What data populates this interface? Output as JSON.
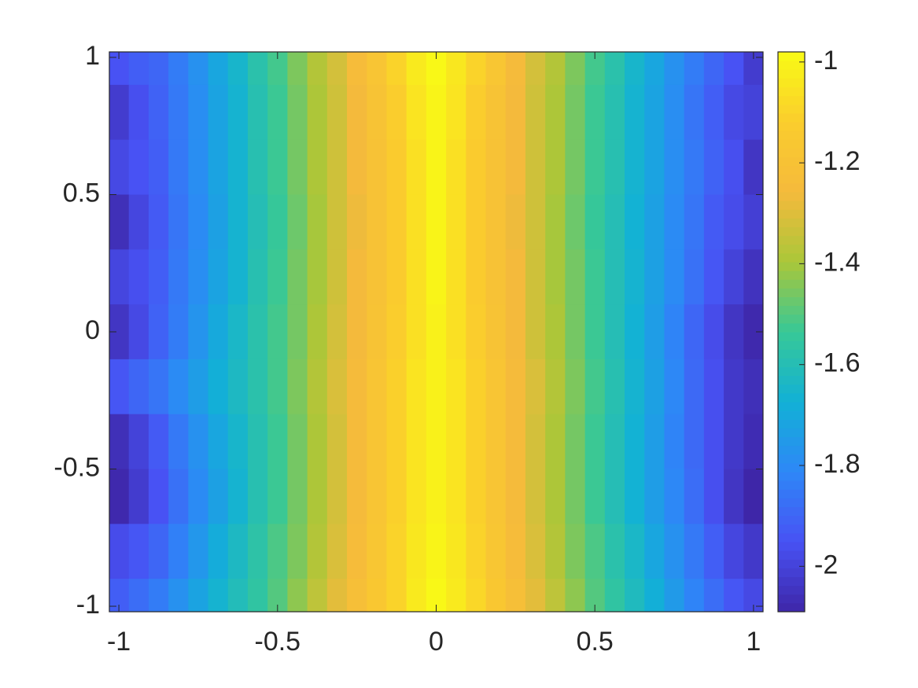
{
  "chart_data": {
    "type": "heatmap",
    "colormap": "parula",
    "x": [
      -1,
      -0.9375,
      -0.875,
      -0.8125,
      -0.75,
      -0.6875,
      -0.625,
      -0.5625,
      -0.5,
      -0.4375,
      -0.375,
      -0.3125,
      -0.25,
      -0.1875,
      -0.125,
      -0.0625,
      0,
      0.0625,
      0.125,
      0.1875,
      0.25,
      0.3125,
      0.375,
      0.4375,
      0.5,
      0.5625,
      0.625,
      0.6875,
      0.75,
      0.8125,
      0.875,
      0.9375,
      1
    ],
    "y": [
      1,
      0.8,
      0.6,
      0.4,
      0.2,
      0,
      -0.2,
      -0.4,
      -0.6,
      -0.8,
      -1
    ],
    "values": [
      [
        -1.95,
        -1.92,
        -1.9,
        -1.84,
        -1.78,
        -1.71,
        -1.65,
        -1.58,
        -1.52,
        -1.45,
        -1.38,
        -1.32,
        -1.24,
        -1.18,
        -1.1,
        -1.03,
        -0.99,
        -1.04,
        -1.1,
        -1.17,
        -1.25,
        -1.32,
        -1.38,
        -1.45,
        -1.52,
        -1.58,
        -1.65,
        -1.71,
        -1.78,
        -1.84,
        -1.9,
        -1.95,
        -2.02
      ],
      [
        -2.02,
        -1.96,
        -1.91,
        -1.85,
        -1.79,
        -1.72,
        -1.66,
        -1.59,
        -1.53,
        -1.46,
        -1.39,
        -1.33,
        -1.26,
        -1.19,
        -1.12,
        -1.05,
        -1.0,
        -1.05,
        -1.12,
        -1.19,
        -1.26,
        -1.33,
        -1.39,
        -1.46,
        -1.53,
        -1.59,
        -1.66,
        -1.72,
        -1.79,
        -1.86,
        -1.92,
        -1.98,
        -2.0
      ],
      [
        -1.98,
        -1.95,
        -1.92,
        -1.85,
        -1.79,
        -1.72,
        -1.66,
        -1.59,
        -1.53,
        -1.46,
        -1.39,
        -1.33,
        -1.26,
        -1.2,
        -1.13,
        -1.06,
        -1.0,
        -1.06,
        -1.13,
        -1.2,
        -1.26,
        -1.33,
        -1.39,
        -1.46,
        -1.53,
        -1.59,
        -1.66,
        -1.72,
        -1.79,
        -1.85,
        -1.91,
        -1.96,
        -2.04
      ],
      [
        -2.06,
        -1.99,
        -1.93,
        -1.86,
        -1.8,
        -1.73,
        -1.66,
        -1.6,
        -1.54,
        -1.47,
        -1.4,
        -1.33,
        -1.27,
        -1.2,
        -1.13,
        -1.06,
        -1.0,
        -1.06,
        -1.13,
        -1.2,
        -1.27,
        -1.33,
        -1.4,
        -1.47,
        -1.54,
        -1.6,
        -1.67,
        -1.73,
        -1.8,
        -1.86,
        -1.93,
        -1.97,
        -2.01
      ],
      [
        -1.99,
        -1.96,
        -1.92,
        -1.85,
        -1.79,
        -1.72,
        -1.66,
        -1.59,
        -1.53,
        -1.46,
        -1.4,
        -1.33,
        -1.26,
        -1.2,
        -1.13,
        -1.06,
        -1.0,
        -1.06,
        -1.13,
        -1.2,
        -1.26,
        -1.33,
        -1.4,
        -1.46,
        -1.53,
        -1.6,
        -1.66,
        -1.73,
        -1.8,
        -1.87,
        -1.94,
        -2.0,
        -2.05
      ],
      [
        -2.04,
        -1.98,
        -1.91,
        -1.84,
        -1.77,
        -1.7,
        -1.64,
        -1.58,
        -1.52,
        -1.46,
        -1.39,
        -1.32,
        -1.26,
        -1.19,
        -1.12,
        -1.06,
        -1.01,
        -1.06,
        -1.12,
        -1.19,
        -1.26,
        -1.33,
        -1.39,
        -1.46,
        -1.53,
        -1.6,
        -1.67,
        -1.74,
        -1.82,
        -1.9,
        -1.97,
        -2.04,
        -2.08
      ],
      [
        -1.94,
        -1.9,
        -1.86,
        -1.8,
        -1.74,
        -1.68,
        -1.63,
        -1.58,
        -1.52,
        -1.45,
        -1.38,
        -1.31,
        -1.25,
        -1.18,
        -1.11,
        -1.05,
        -1.01,
        -1.05,
        -1.11,
        -1.18,
        -1.25,
        -1.31,
        -1.38,
        -1.45,
        -1.52,
        -1.59,
        -1.66,
        -1.73,
        -1.81,
        -1.89,
        -1.96,
        -2.03,
        -2.06
      ],
      [
        -2.06,
        -2.0,
        -1.93,
        -1.85,
        -1.78,
        -1.71,
        -1.65,
        -1.59,
        -1.53,
        -1.46,
        -1.39,
        -1.32,
        -1.25,
        -1.18,
        -1.11,
        -1.05,
        -1.01,
        -1.05,
        -1.11,
        -1.18,
        -1.25,
        -1.32,
        -1.39,
        -1.46,
        -1.53,
        -1.6,
        -1.67,
        -1.74,
        -1.82,
        -1.89,
        -1.96,
        -2.03,
        -2.07
      ],
      [
        -2.08,
        -2.02,
        -1.95,
        -1.87,
        -1.8,
        -1.73,
        -1.66,
        -1.59,
        -1.53,
        -1.46,
        -1.39,
        -1.32,
        -1.25,
        -1.18,
        -1.11,
        -1.05,
        -1.01,
        -1.05,
        -1.11,
        -1.18,
        -1.25,
        -1.32,
        -1.39,
        -1.46,
        -1.53,
        -1.6,
        -1.67,
        -1.74,
        -1.81,
        -1.88,
        -1.96,
        -2.04,
        -2.09
      ],
      [
        -1.97,
        -1.94,
        -1.9,
        -1.83,
        -1.76,
        -1.69,
        -1.63,
        -1.57,
        -1.51,
        -1.45,
        -1.38,
        -1.31,
        -1.24,
        -1.17,
        -1.1,
        -1.04,
        -1.0,
        -1.04,
        -1.1,
        -1.17,
        -1.24,
        -1.31,
        -1.38,
        -1.45,
        -1.51,
        -1.58,
        -1.64,
        -1.71,
        -1.78,
        -1.85,
        -1.92,
        -1.99,
        -2.03
      ],
      [
        -1.92,
        -1.88,
        -1.84,
        -1.78,
        -1.72,
        -1.66,
        -1.61,
        -1.56,
        -1.5,
        -1.43,
        -1.36,
        -1.29,
        -1.22,
        -1.16,
        -1.1,
        -1.03,
        -0.99,
        -1.03,
        -1.09,
        -1.16,
        -1.22,
        -1.29,
        -1.36,
        -1.43,
        -1.5,
        -1.56,
        -1.62,
        -1.68,
        -1.75,
        -1.82,
        -1.88,
        -1.94,
        -1.98
      ]
    ],
    "xlim": [
      -1.03,
      1.03
    ],
    "ylim": [
      -1.02,
      1.02
    ],
    "xticks": [
      -1,
      -0.5,
      0,
      0.5,
      1
    ],
    "yticks": [
      -1,
      -0.5,
      0,
      0.5,
      1
    ],
    "clim": [
      -2.09,
      -0.98
    ],
    "cticks": [
      -2,
      -1.8,
      -1.6,
      -1.4,
      -1.2,
      -1
    ]
  }
}
